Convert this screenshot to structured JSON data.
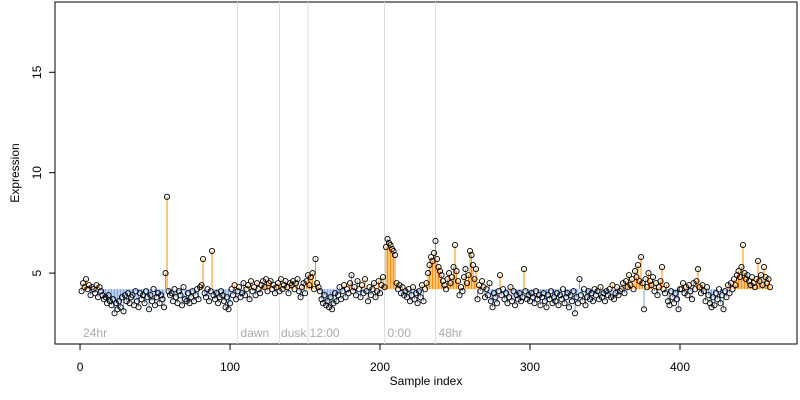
{
  "chart_data": {
    "type": "scatter",
    "xlabel": "Sample index",
    "ylabel": "Expression",
    "xlim": [
      -16.7,
      478
    ],
    "ylim": [
      1.47,
      18.5
    ],
    "xticks": [
      0,
      100,
      200,
      300,
      400
    ],
    "yticks": [
      5,
      10,
      15
    ],
    "baseline": 4.2,
    "above_color": "#ff8c00",
    "below_color": "#7a9fd8",
    "point_color": "#000000",
    "vlines": [
      105,
      133,
      152,
      203,
      237
    ],
    "annotations": [
      {
        "x": 2,
        "text": "24hr"
      },
      {
        "x": 107,
        "text": "dawn"
      },
      {
        "x": 134,
        "text": "dusk"
      },
      {
        "x": 153,
        "text": "12:00"
      },
      {
        "x": 205,
        "text": "0:00"
      },
      {
        "x": 239,
        "text": "48hr"
      }
    ],
    "x": [
      1,
      2,
      3,
      4,
      5,
      6,
      7,
      8,
      9,
      10,
      11,
      12,
      13,
      14,
      15,
      16,
      17,
      18,
      19,
      20,
      21,
      22,
      23,
      24,
      25,
      26,
      27,
      28,
      29,
      30,
      31,
      32,
      33,
      34,
      35,
      36,
      37,
      38,
      39,
      40,
      41,
      42,
      43,
      44,
      45,
      46,
      47,
      48,
      49,
      50,
      51,
      52,
      53,
      54,
      55,
      56,
      57,
      58,
      59,
      60,
      61,
      62,
      63,
      64,
      65,
      66,
      67,
      68,
      69,
      70,
      71,
      72,
      73,
      74,
      75,
      76,
      77,
      78,
      79,
      80,
      81,
      82,
      83,
      84,
      85,
      86,
      87,
      88,
      89,
      90,
      91,
      92,
      93,
      94,
      95,
      96,
      97,
      98,
      99,
      100,
      101,
      102,
      103,
      104,
      105,
      106,
      107,
      108,
      109,
      110,
      111,
      112,
      113,
      114,
      115,
      116,
      117,
      118,
      119,
      120,
      121,
      122,
      123,
      124,
      125,
      126,
      127,
      128,
      129,
      130,
      131,
      132,
      133,
      134,
      135,
      136,
      137,
      138,
      139,
      140,
      141,
      142,
      143,
      144,
      145,
      146,
      147,
      148,
      149,
      150,
      151,
      152,
      153,
      154,
      155,
      156,
      157,
      158,
      159,
      160,
      161,
      162,
      163,
      164,
      165,
      166,
      167,
      168,
      169,
      170,
      171,
      172,
      173,
      174,
      175,
      176,
      177,
      178,
      179,
      180,
      181,
      182,
      183,
      184,
      185,
      186,
      187,
      188,
      189,
      190,
      191,
      192,
      193,
      194,
      195,
      196,
      197,
      198,
      199,
      200,
      201,
      202,
      203,
      204,
      205,
      206,
      207,
      208,
      209,
      210,
      211,
      212,
      213,
      214,
      215,
      216,
      217,
      218,
      219,
      220,
      221,
      222,
      223,
      224,
      225,
      226,
      227,
      228,
      229,
      230,
      231,
      232,
      233,
      234,
      235,
      236,
      237,
      238,
      239,
      240,
      241,
      242,
      243,
      244,
      245,
      246,
      247,
      248,
      249,
      250,
      251,
      252,
      253,
      254,
      255,
      256,
      257,
      258,
      259,
      260,
      261,
      262,
      263,
      264,
      265,
      266,
      267,
      268,
      269,
      270,
      271,
      272,
      273,
      274,
      275,
      276,
      277,
      278,
      279,
      280,
      281,
      282,
      283,
      284,
      285,
      286,
      287,
      288,
      289,
      290,
      291,
      292,
      293,
      294,
      295,
      296,
      297,
      298,
      299,
      300,
      301,
      302,
      303,
      304,
      305,
      306,
      307,
      308,
      309,
      310,
      311,
      312,
      313,
      314,
      315,
      316,
      317,
      318,
      319,
      320,
      321,
      322,
      323,
      324,
      325,
      326,
      327,
      328,
      329,
      330,
      331,
      332,
      333,
      334,
      335,
      336,
      337,
      338,
      339,
      340,
      341,
      342,
      343,
      344,
      345,
      346,
      347,
      348,
      349,
      350,
      351,
      352,
      353,
      354,
      355,
      356,
      357,
      358,
      359,
      360,
      361,
      362,
      363,
      364,
      365,
      366,
      367,
      368,
      369,
      370,
      371,
      372,
      373,
      374,
      375,
      376,
      377,
      378,
      379,
      380,
      381,
      382,
      383,
      384,
      385,
      386,
      387,
      388,
      389,
      390,
      391,
      392,
      393,
      394,
      395,
      396,
      397,
      398,
      399,
      400,
      401,
      402,
      403,
      404,
      405,
      406,
      407,
      408,
      409,
      410,
      411,
      412,
      413,
      414,
      415,
      416,
      417,
      418,
      419,
      420,
      421,
      422,
      423,
      424,
      425,
      426,
      427,
      428,
      429,
      430,
      431,
      432,
      433,
      434,
      435,
      436,
      437,
      438,
      439,
      440,
      441,
      442,
      443,
      444,
      445,
      446,
      447,
      448,
      449,
      450,
      451,
      452,
      453,
      454,
      455,
      456,
      457,
      458,
      459,
      460
    ],
    "values": [
      4.1,
      4.5,
      4.3,
      4.7,
      4.2,
      4.4,
      3.9,
      4.3,
      4.2,
      4.0,
      4.4,
      3.8,
      4.3,
      4.1,
      3.9,
      3.7,
      3.8,
      3.5,
      3.9,
      3.6,
      3.4,
      3.7,
      3.0,
      3.5,
      3.2,
      3.6,
      3.3,
      3.8,
      3.1,
      3.9,
      3.6,
      4.0,
      3.5,
      3.8,
      3.9,
      3.4,
      4.1,
      3.6,
      3.3,
      4.0,
      3.7,
      3.9,
      3.5,
      4.1,
      3.8,
      3.2,
      3.9,
      3.6,
      4.2,
      3.4,
      3.8,
      4.0,
      3.5,
      3.9,
      3.7,
      3.3,
      5.0,
      8.8,
      4.1,
      3.9,
      4.0,
      3.6,
      4.2,
      3.8,
      3.5,
      4.1,
      3.9,
      3.4,
      4.3,
      3.7,
      3.6,
      4.0,
      3.5,
      3.8,
      4.1,
      3.6,
      3.9,
      4.2,
      3.7,
      4.3,
      4.4,
      5.7,
      4.0,
      3.8,
      4.2,
      3.6,
      4.1,
      6.1,
      3.9,
      3.7,
      4.0,
      3.5,
      3.8,
      4.1,
      3.9,
      3.6,
      3.3,
      3.8,
      3.2,
      3.5,
      4.2,
      3.9,
      4.4,
      3.7,
      4.1,
      4.3,
      3.8,
      4.0,
      4.5,
      3.9,
      4.2,
      4.4,
      3.7,
      4.6,
      4.1,
      4.3,
      3.9,
      4.5,
      4.2,
      4.0,
      4.4,
      4.6,
      4.3,
      4.7,
      4.1,
      4.5,
      4.6,
      4.2,
      4.4,
      4.0,
      4.3,
      4.5,
      4.1,
      4.7,
      4.2,
      4.4,
      4.6,
      4.3,
      4.0,
      4.5,
      4.4,
      4.6,
      4.2,
      4.5,
      4.7,
      4.1,
      3.8,
      4.3,
      4.5,
      4.0,
      4.6,
      4.9,
      4.4,
      4.8,
      5.0,
      4.2,
      5.7,
      4.5,
      4.3,
      4.1,
      3.7,
      3.5,
      3.9,
      3.4,
      3.6,
      3.3,
      3.8,
      3.2,
      3.5,
      4.0,
      3.6,
      3.9,
      4.3,
      3.7,
      4.1,
      4.4,
      3.8,
      4.2,
      4.0,
      4.5,
      4.9,
      4.1,
      4.3,
      3.9,
      4.6,
      4.2,
      3.8,
      4.4,
      4.0,
      4.7,
      4.1,
      3.6,
      4.3,
      3.9,
      4.2,
      4.5,
      3.8,
      4.1,
      4.6,
      4.0,
      4.4,
      4.8,
      4.3,
      6.3,
      6.7,
      6.5,
      6.4,
      6.2,
      6.1,
      5.9,
      4.5,
      4.2,
      4.4,
      4.0,
      4.3,
      3.9,
      4.1,
      3.8,
      4.2,
      3.6,
      3.9,
      4.3,
      3.7,
      4.0,
      3.5,
      4.1,
      3.8,
      4.4,
      3.6,
      4.2,
      4.5,
      5.0,
      5.4,
      5.8,
      5.6,
      6.0,
      6.6,
      5.7,
      5.3,
      5.1,
      4.9,
      4.6,
      4.4,
      4.2,
      4.7,
      5.0,
      4.5,
      4.8,
      5.3,
      6.4,
      5.1,
      4.6,
      3.9,
      4.3,
      4.1,
      4.8,
      5.2,
      4.5,
      4.9,
      6.1,
      5.9,
      5.4,
      4.7,
      5.2,
      3.7,
      4.4,
      4.1,
      4.6,
      4.3,
      3.8,
      4.2,
      3.9,
      4.5,
      3.6,
      3.3,
      4.0,
      3.8,
      3.5,
      4.1,
      4.9,
      3.9,
      4.2,
      3.7,
      4.0,
      3.5,
      3.8,
      4.3,
      3.6,
      4.1,
      3.4,
      3.9,
      3.7,
      4.0,
      3.6,
      3.8,
      5.2,
      4.1,
      3.7,
      3.9,
      3.6,
      4.0,
      3.8,
      3.5,
      4.1,
      3.7,
      3.9,
      3.4,
      3.8,
      4.0,
      3.6,
      3.3,
      3.9,
      3.7,
      4.1,
      3.5,
      3.8,
      3.6,
      4.0,
      3.4,
      3.9,
      3.7,
      4.2,
      3.5,
      3.8,
      4.0,
      3.3,
      3.9,
      3.6,
      4.1,
      3.0,
      3.8,
      3.5,
      4.7,
      3.9,
      3.6,
      4.2,
      3.4,
      3.8,
      4.1,
      3.7,
      4.0,
      3.6,
      4.2,
      3.9,
      4.1,
      3.7,
      4.3,
      3.8,
      4.0,
      3.6,
      4.1,
      3.9,
      4.2,
      3.8,
      4.4,
      3.7,
      4.0,
      4.3,
      3.9,
      4.1,
      4.2,
      4.5,
      4.0,
      4.6,
      4.3,
      4.9,
      4.4,
      4.7,
      4.2,
      5.1,
      4.8,
      5.4,
      4.6,
      5.8,
      4.5,
      3.2,
      4.7,
      4.3,
      5.0,
      4.6,
      4.4,
      4.8,
      4.1,
      4.5,
      3.9,
      4.3,
      4.6,
      5.3,
      4.2,
      4.0,
      4.4,
      3.6,
      3.4,
      4.1,
      3.8,
      3.5,
      4.0,
      3.7,
      3.2,
      4.2,
      4.2,
      4.5,
      4.0,
      4.3,
      3.9,
      4.4,
      4.1,
      3.7,
      4.5,
      4.2,
      4.6,
      5.2,
      4.3,
      4.0,
      4.4,
      4.1,
      3.6,
      4.3,
      3.9,
      3.5,
      3.3,
      3.8,
      3.4,
      4.0,
      3.7,
      4.2,
      3.5,
      3.9,
      3.2,
      4.1,
      3.8,
      4.4,
      4.0,
      4.5,
      4.2,
      4.7,
      4.4,
      4.9,
      5.1,
      4.8,
      5.3,
      6.4,
      5.0,
      4.7,
      4.9,
      4.6,
      4.4,
      4.8,
      4.5,
      4.3,
      4.7,
      5.6,
      4.6,
      4.9,
      4.4,
      5.3,
      4.8,
      4.5,
      4.7,
      4.3
    ]
  }
}
